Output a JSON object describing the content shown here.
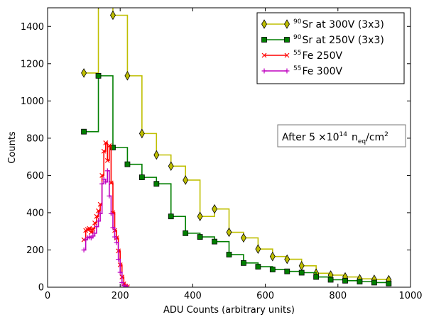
{
  "chart_data": {
    "type": "line",
    "title": "",
    "xlabel": "ADU Counts (arbitrary units)",
    "ylabel": "Counts",
    "xlim": [
      0,
      1000
    ],
    "ylim": [
      0,
      1500
    ],
    "x_ticks": [
      0,
      200,
      400,
      600,
      800,
      1000
    ],
    "y_ticks": [
      0,
      200,
      400,
      600,
      800,
      1000,
      1200,
      1400
    ],
    "grid": false,
    "legend_position": "top-right",
    "annotation": {
      "prefix": "After 5",
      "times": "×10",
      "exponent": "14",
      "n": "n",
      "subscript": "eq",
      "unit": "/cm",
      "unit_exp": "2"
    },
    "series": [
      {
        "name_sup": "90",
        "name": "Sr at 300V (3x3)",
        "color": "#bfbf00",
        "marker": "diamond",
        "x": [
          100,
          140,
          180,
          220,
          260,
          300,
          340,
          380,
          420,
          460,
          500,
          540,
          580,
          620,
          660,
          700,
          740,
          780,
          820,
          860,
          900,
          940
        ],
        "y": [
          1150,
          1520,
          1460,
          1135,
          825,
          710,
          650,
          575,
          380,
          420,
          295,
          265,
          205,
          165,
          150,
          115,
          75,
          65,
          55,
          45,
          42,
          40
        ]
      },
      {
        "name_sup": "90",
        "name": "Sr at 250V (3x3)",
        "color": "#007f00",
        "marker": "square",
        "x": [
          100,
          140,
          180,
          220,
          260,
          300,
          340,
          380,
          420,
          460,
          500,
          540,
          580,
          620,
          660,
          700,
          740,
          780,
          820,
          860,
          900,
          940
        ],
        "y": [
          835,
          1135,
          750,
          660,
          590,
          555,
          380,
          290,
          270,
          245,
          175,
          130,
          110,
          95,
          85,
          78,
          55,
          40,
          35,
          30,
          25,
          20
        ]
      },
      {
        "name_sup": "55",
        "name": "Fe 250V",
        "color": "#ff0000",
        "marker": "x",
        "x": [
          100,
          105,
          110,
          115,
          120,
          125,
          130,
          135,
          140,
          145,
          150,
          155,
          160,
          165,
          170,
          175,
          180,
          185,
          190,
          195,
          200,
          205,
          210,
          215,
          220
        ],
        "y": [
          255,
          305,
          310,
          315,
          295,
          315,
          345,
          380,
          410,
          445,
          600,
          730,
          775,
          680,
          760,
          560,
          400,
          305,
          265,
          195,
          120,
          55,
          18,
          6,
          2
        ]
      },
      {
        "name_sup": "55",
        "name": "Fe 300V",
        "color": "#bf00bf",
        "marker": "plus",
        "x": [
          100,
          105,
          110,
          115,
          120,
          125,
          130,
          135,
          140,
          145,
          150,
          155,
          160,
          165,
          170,
          175,
          180,
          185,
          190,
          195,
          200,
          205,
          210,
          215,
          220
        ],
        "y": [
          200,
          255,
          265,
          270,
          265,
          275,
          290,
          325,
          355,
          395,
          555,
          580,
          565,
          625,
          490,
          395,
          320,
          270,
          240,
          150,
          80,
          25,
          8,
          3,
          1
        ]
      }
    ]
  }
}
